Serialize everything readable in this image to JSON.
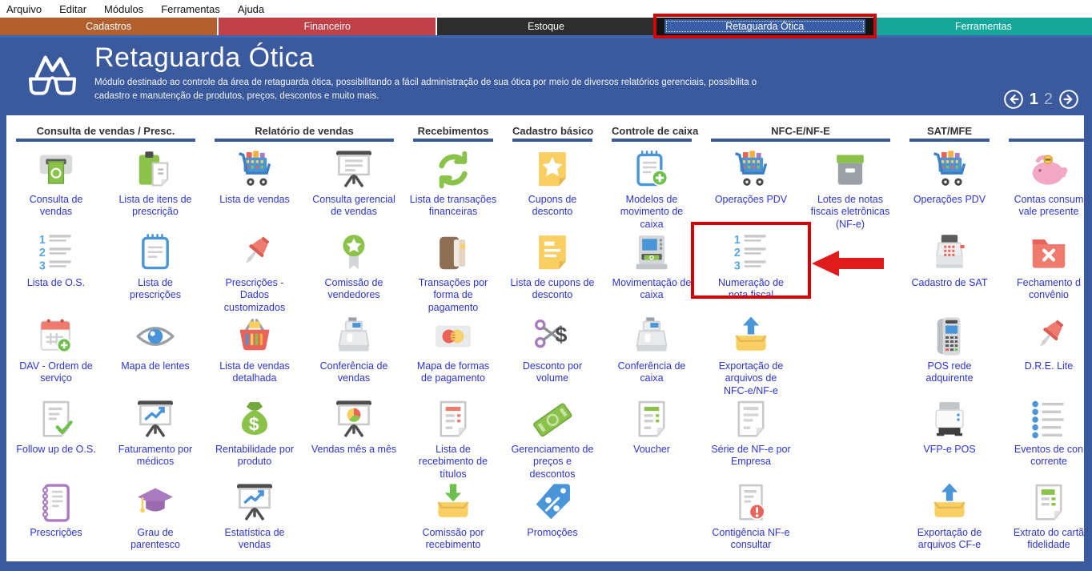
{
  "menu_bar": {
    "items": [
      "Arquivo",
      "Editar",
      "Módulos",
      "Ferramentas",
      "Ajuda"
    ]
  },
  "tab_bar": {
    "tabs": [
      {
        "label": "Cadastros",
        "color": "#b2612e"
      },
      {
        "label": "Financeiro",
        "color": "#c04048"
      },
      {
        "label": "Estoque",
        "color": "#2d2d2d"
      },
      {
        "label": "Retaguarda Ótica",
        "color": "#3a5fa8",
        "tab_bg": "#141414",
        "selected": true,
        "annotated": true
      },
      {
        "label": "Ferramentas",
        "color": "#14a79a"
      }
    ]
  },
  "header": {
    "title": "Retaguarda Ótica",
    "description": "Módulo destinado ao controle da área de retaguarda ótica, possibilitando a fácil administração de sua ótica por meio de diversos relatórios gerenciais, possibilita o cadastro e manutenção de produtos, preços, descontos e muito mais.",
    "logo_icon": "glasses-logo-icon",
    "pagination": {
      "pages": [
        "1",
        "2"
      ],
      "current_page": "1",
      "prev_icon": "left-arrow-icon",
      "next_icon": "right-arrow-icon"
    }
  },
  "annotation": {
    "box_color": "#d60000",
    "arrow_color": "#e01b1b",
    "target": "Numeração de nota fiscal"
  },
  "category_headers": [
    {
      "label": "Consulta de vendas / Presc.",
      "col_start": 1,
      "col_span": 2
    },
    {
      "label": "Relatório de vendas",
      "col_start": 3,
      "col_span": 2
    },
    {
      "label": "Recebimentos",
      "col_start": 5,
      "col_span": 1
    },
    {
      "label": "Cadastro básico",
      "col_start": 6,
      "col_span": 1
    },
    {
      "label": "Controle de caixa",
      "col_start": 7,
      "col_span": 1
    },
    {
      "label": "NFC-E/NF-E",
      "col_start": 8,
      "col_span": 2
    },
    {
      "label": "SAT/MFE",
      "col_start": 10,
      "col_span": 1
    },
    {
      "label": "",
      "col_start": 11,
      "col_span": 1
    }
  ],
  "grid": {
    "items": [
      {
        "row": 1,
        "col": 1,
        "label": "Consulta de\nvendas",
        "icon": "money-dispenser-icon"
      },
      {
        "row": 1,
        "col": 2,
        "label": "Lista de itens de\nprescrição",
        "icon": "clipboard-document-icon"
      },
      {
        "row": 1,
        "col": 3,
        "label": "Lista de vendas",
        "icon": "shopping-cart-icon"
      },
      {
        "row": 1,
        "col": 4,
        "label": "Consulta gerencial\nde vendas",
        "icon": "presentation-board-icon"
      },
      {
        "row": 1,
        "col": 5,
        "label": "Lista de transações\nfinanceiras",
        "icon": "sync-arrows-icon"
      },
      {
        "row": 1,
        "col": 6,
        "label": "Cupons de\ndesconto",
        "icon": "note-star-icon"
      },
      {
        "row": 1,
        "col": 7,
        "label": "Modelos de\nmovimento de\ncaixa",
        "icon": "notepad-plus-icon"
      },
      {
        "row": 1,
        "col": 8,
        "label": "Operações PDV",
        "icon": "shopping-cart-icon"
      },
      {
        "row": 1,
        "col": 9,
        "label": "Lotes de notas\nfiscais eletrônicas\n(NF-e)",
        "icon": "archive-box-icon"
      },
      {
        "row": 1,
        "col": 10,
        "label": "Operações PDV",
        "icon": "shopping-cart-icon"
      },
      {
        "row": 1,
        "col": 11,
        "label": "Contas consum\nvale presente",
        "icon": "piggy-bank-icon"
      },
      {
        "row": 2,
        "col": 1,
        "label": "Lista de O.S.",
        "icon": "numbered-list-icon"
      },
      {
        "row": 2,
        "col": 2,
        "label": "Lista de\nprescrições",
        "icon": "notepad-icon"
      },
      {
        "row": 2,
        "col": 3,
        "label": "Prescrições -\nDados\ncustomizados",
        "icon": "push-pin-icon"
      },
      {
        "row": 2,
        "col": 4,
        "label": "Comissão de\nvendedores",
        "icon": "award-ribbon-icon"
      },
      {
        "row": 2,
        "col": 5,
        "label": "Transações por\nforma de\npagamento",
        "icon": "wallet-icon"
      },
      {
        "row": 2,
        "col": 6,
        "label": "Lista de cupons de\ndesconto",
        "icon": "note-lines-icon"
      },
      {
        "row": 2,
        "col": 7,
        "label": "Movimentação de\ncaixa",
        "icon": "cash-machine-icon"
      },
      {
        "row": 2,
        "col": 8,
        "label": "Numeração de\nnota fiscal",
        "icon": "numbered-list-icon",
        "highlighted": true
      },
      {
        "row": 2,
        "col": 10,
        "label": "Cadastro de SAT",
        "icon": "cash-register-sat-icon"
      },
      {
        "row": 2,
        "col": 11,
        "label": "Fechamento d\nconvênio",
        "icon": "folder-x-icon"
      },
      {
        "row": 3,
        "col": 1,
        "label": "DAV - Ordem de\nserviço",
        "icon": "calendar-plus-icon"
      },
      {
        "row": 3,
        "col": 2,
        "label": "Mapa de lentes",
        "icon": "eye-icon"
      },
      {
        "row": 3,
        "col": 3,
        "label": "Lista de vendas\ndetalhada",
        "icon": "basket-icon"
      },
      {
        "row": 3,
        "col": 4,
        "label": "Conferência de\nvendas",
        "icon": "cash-register-icon"
      },
      {
        "row": 3,
        "col": 5,
        "label": "Mapa de formas\nde pagamento",
        "icon": "payment-card-icon"
      },
      {
        "row": 3,
        "col": 6,
        "label": "Desconto por\nvolume",
        "icon": "scissors-dollar-icon"
      },
      {
        "row": 3,
        "col": 7,
        "label": "Conferência de\ncaixa",
        "icon": "cash-register-icon"
      },
      {
        "row": 3,
        "col": 8,
        "label": "Exportação de\narquivos de\nNFC-e/NF-e",
        "icon": "tray-arrow-up-icon"
      },
      {
        "row": 3,
        "col": 10,
        "label": "POS rede\nadquirente",
        "icon": "pos-terminal-icon"
      },
      {
        "row": 3,
        "col": 11,
        "label": "D.R.E. Lite",
        "icon": "push-pin-icon"
      },
      {
        "row": 4,
        "col": 1,
        "label": "Follow up de O.S.",
        "icon": "document-check-icon"
      },
      {
        "row": 4,
        "col": 2,
        "label": "Faturamento por\nmédicos",
        "icon": "presentation-chart-icon"
      },
      {
        "row": 4,
        "col": 3,
        "label": "Rentabilidade por\nproduto",
        "icon": "money-bag-icon"
      },
      {
        "row": 4,
        "col": 4,
        "label": "Vendas mês a mês",
        "icon": "presentation-pie-icon"
      },
      {
        "row": 4,
        "col": 5,
        "label": "Lista de\nrecebimento de\ntítulos",
        "icon": "document-red-lines-icon"
      },
      {
        "row": 4,
        "col": 6,
        "label": "Gerenciamento de\npreços e\ndescontos",
        "icon": "banknote-icon"
      },
      {
        "row": 4,
        "col": 7,
        "label": "Voucher",
        "icon": "document-green-lines-icon"
      },
      {
        "row": 4,
        "col": 8,
        "label": "Série de NF-e por\nEmpresa",
        "icon": "document-gray-lines-icon"
      },
      {
        "row": 4,
        "col": 10,
        "label": "VFP-e POS",
        "icon": "printer-icon"
      },
      {
        "row": 4,
        "col": 11,
        "label": "Eventos de con\ncorrente",
        "icon": "bullet-list-icon"
      },
      {
        "row": 5,
        "col": 1,
        "label": "Prescrições",
        "icon": "spiral-notebook-icon"
      },
      {
        "row": 5,
        "col": 2,
        "label": "Grau de\nparentesco",
        "icon": "graduation-cap-icon"
      },
      {
        "row": 5,
        "col": 3,
        "label": "Estatística de\nvendas",
        "icon": "presentation-chart-icon"
      },
      {
        "row": 5,
        "col": 5,
        "label": "Comissão por\nrecebimento",
        "icon": "tray-arrow-down-icon"
      },
      {
        "row": 5,
        "col": 6,
        "label": "Promoções",
        "icon": "discount-tag-icon"
      },
      {
        "row": 5,
        "col": 8,
        "label": "Contigência NF-e\nconsultar",
        "icon": "document-alert-icon"
      },
      {
        "row": 5,
        "col": 10,
        "label": "Exportação de\narquivos CF-e",
        "icon": "tray-arrow-up-icon"
      },
      {
        "row": 5,
        "col": 11,
        "label": "Extrato do cartã\nfidelidade",
        "icon": "document-statement-icon"
      }
    ]
  }
}
